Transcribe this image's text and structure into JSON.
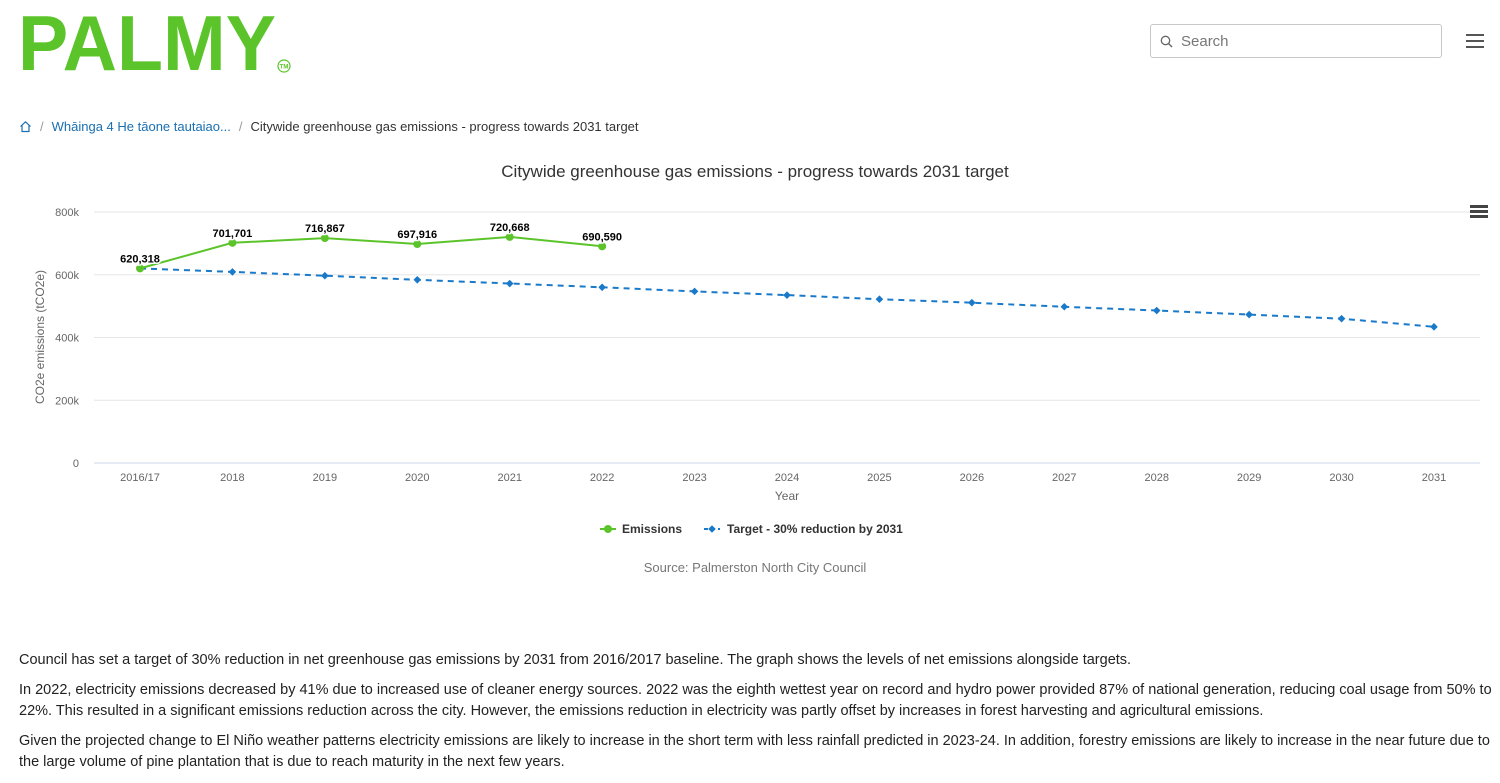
{
  "brand": {
    "name": "PALMY",
    "trademark": "TM",
    "color": "#5cc42b"
  },
  "header": {
    "search_placeholder": "Search"
  },
  "breadcrumb": {
    "parent": "Whāinga 4 He tāone tautaiao...",
    "current": "Citywide greenhouse gas emissions - progress towards 2031 target"
  },
  "chart_data": {
    "type": "line",
    "title": "Citywide greenhouse gas emissions - progress towards 2031 target",
    "xlabel": "Year",
    "ylabel": "CO2e emissions (tCO2e)",
    "ylim": [
      0,
      800000
    ],
    "yticks": [
      0,
      200000,
      400000,
      600000,
      800000
    ],
    "ytick_labels": [
      "0",
      "200k",
      "400k",
      "600k",
      "800k"
    ],
    "categories": [
      "2016/17",
      "2018",
      "2019",
      "2020",
      "2021",
      "2022",
      "2023",
      "2024",
      "2025",
      "2026",
      "2027",
      "2028",
      "2029",
      "2030",
      "2031"
    ],
    "series": [
      {
        "name": "Emissions",
        "color": "#5cc42b",
        "dash": false,
        "marker": "circle",
        "data_labels": true,
        "values": [
          620318,
          701701,
          716867,
          697916,
          720668,
          690590,
          null,
          null,
          null,
          null,
          null,
          null,
          null,
          null,
          null
        ],
        "labels": [
          "620,318",
          "701,701",
          "716,867",
          "697,916",
          "720,668",
          "690,590"
        ]
      },
      {
        "name": "Target - 30% reduction by 2031",
        "color": "#1a7ac9",
        "dash": true,
        "marker": "diamond",
        "data_labels": false,
        "values": [
          620318,
          609000,
          597000,
          584000,
          572000,
          560000,
          547000,
          535000,
          522000,
          511000,
          498000,
          486000,
          473000,
          460000,
          434000
        ]
      }
    ],
    "legend_position": "bottom-center",
    "source": "Source: Palmerston North City Council",
    "grid": true
  },
  "content": {
    "paragraphs": [
      "Council has set a target of 30% reduction in net greenhouse gas emissions by 2031 from 2016/2017 baseline. The graph shows the levels of net emissions alongside targets.",
      "In 2022, electricity emissions decreased by 41% due to increased use of cleaner energy sources. 2022 was the eighth wettest year on record and hydro power provided 87% of national generation, reducing coal usage from 50% to 22%. This resulted in a significant emissions reduction across the city. However, the emissions reduction in electricity was partly offset by increases in forest harvesting and agricultural emissions.",
      "Given the projected change to El Niño weather patterns electricity emissions are likely to increase in the short term with less rainfall predicted in 2023-24. In addition, forestry emissions are likely to increase in the near future due to the large volume of pine plantation that is due to reach maturity in the next few years."
    ]
  }
}
